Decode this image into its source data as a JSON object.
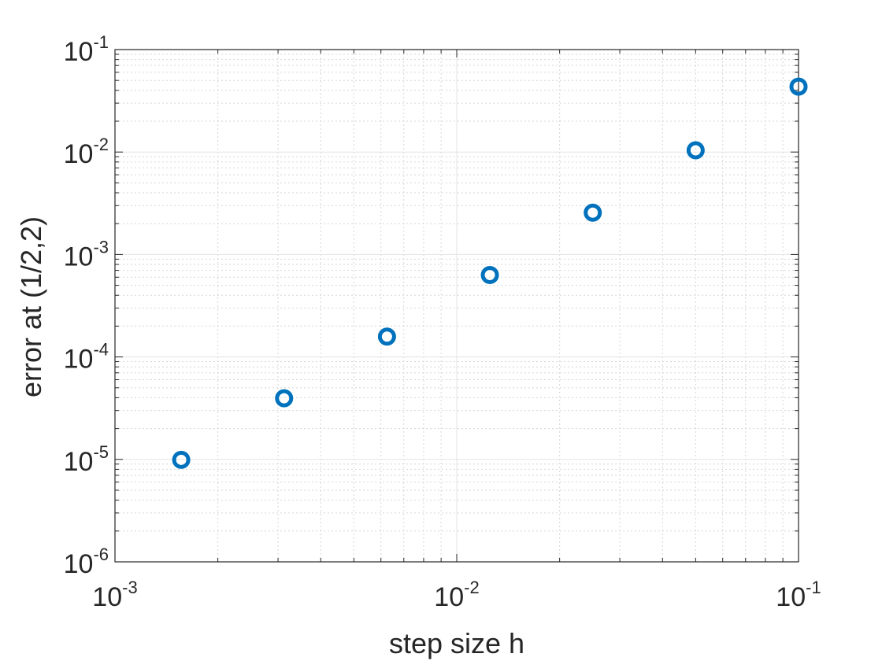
{
  "chart_data": {
    "type": "scatter",
    "title": "",
    "xlabel": "step size h",
    "ylabel": "error at (1/2,2)",
    "xscale": "log",
    "yscale": "log",
    "xlim": [
      0.001,
      0.1
    ],
    "ylim": [
      1e-06,
      0.1
    ],
    "grid": true,
    "minor_grid": true,
    "x_ticks": [
      {
        "base": "10",
        "exp": "-3",
        "value": 0.001
      },
      {
        "base": "10",
        "exp": "-2",
        "value": 0.01
      },
      {
        "base": "10",
        "exp": "-1",
        "value": 0.1
      }
    ],
    "y_ticks": [
      {
        "base": "10",
        "exp": "-6",
        "value": 1e-06
      },
      {
        "base": "10",
        "exp": "-5",
        "value": 1e-05
      },
      {
        "base": "10",
        "exp": "-4",
        "value": 0.0001
      },
      {
        "base": "10",
        "exp": "-3",
        "value": 0.001
      },
      {
        "base": "10",
        "exp": "-2",
        "value": 0.01
      },
      {
        "base": "10",
        "exp": "-1",
        "value": 0.1
      }
    ],
    "series": [
      {
        "marker": "circle",
        "color": "#0072BD",
        "points": [
          {
            "x": 0.0015625,
            "y": 9.9e-06
          },
          {
            "x": 0.003125,
            "y": 3.95e-05
          },
          {
            "x": 0.00625,
            "y": 0.000158
          },
          {
            "x": 0.0125,
            "y": 0.00063
          },
          {
            "x": 0.025,
            "y": 0.00256
          },
          {
            "x": 0.05,
            "y": 0.0104
          },
          {
            "x": 0.1,
            "y": 0.0435
          }
        ]
      }
    ]
  }
}
